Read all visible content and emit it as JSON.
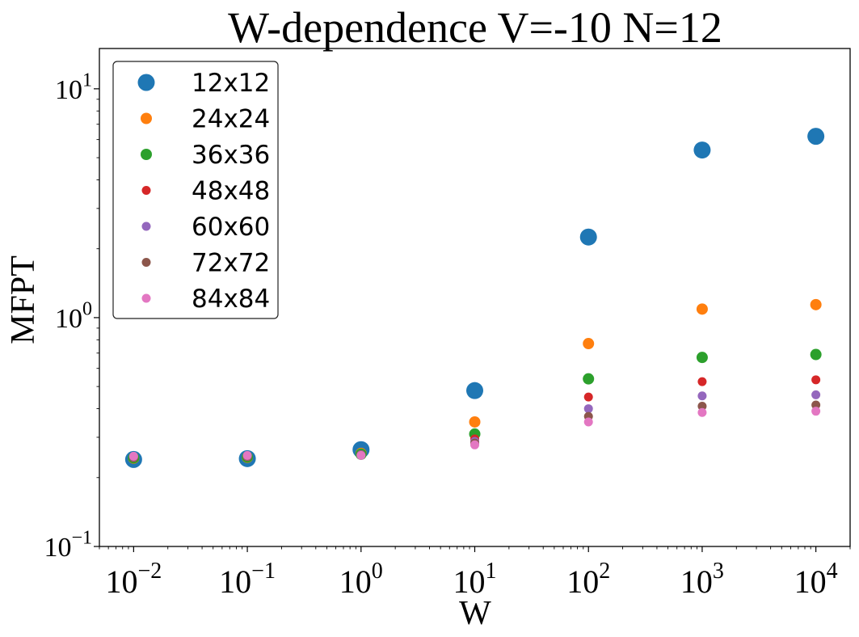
{
  "chart_data": {
    "type": "scatter",
    "title": "W-dependence V=-10 N=12",
    "xlabel": "W",
    "ylabel": "MFPT",
    "xscale": "log",
    "yscale": "log",
    "xlim": [
      0.005,
      20000
    ],
    "ylim": [
      0.1,
      15
    ],
    "x": [
      0.01,
      0.1,
      1,
      10,
      100,
      1000,
      10000
    ],
    "x_ticks": [
      {
        "value": 0.01,
        "base": "10",
        "exp": "−2"
      },
      {
        "value": 0.1,
        "base": "10",
        "exp": "−1"
      },
      {
        "value": 1,
        "base": "10",
        "exp": "0"
      },
      {
        "value": 10,
        "base": "10",
        "exp": "1"
      },
      {
        "value": 100,
        "base": "10",
        "exp": "2"
      },
      {
        "value": 1000,
        "base": "10",
        "exp": "3"
      },
      {
        "value": 10000,
        "base": "10",
        "exp": "4"
      }
    ],
    "y_ticks": [
      {
        "value": 0.1,
        "base": "10",
        "exp": "−1"
      },
      {
        "value": 1,
        "base": "10",
        "exp": "0"
      },
      {
        "value": 10,
        "base": "10",
        "exp": "1"
      }
    ],
    "grid": false,
    "legend": "upper-left",
    "series": [
      {
        "name": "12x12",
        "color": "#1f77b4",
        "size": "large",
        "values": [
          0.24,
          0.242,
          0.265,
          0.48,
          2.25,
          5.4,
          6.2
        ]
      },
      {
        "name": "24x24",
        "color": "#ff7f0e",
        "size": "medium",
        "values": [
          0.243,
          0.245,
          0.255,
          0.35,
          0.77,
          1.09,
          1.14
        ]
      },
      {
        "name": "36x36",
        "color": "#2ca02c",
        "size": "medium",
        "values": [
          0.244,
          0.246,
          0.253,
          0.31,
          0.54,
          0.67,
          0.69
        ]
      },
      {
        "name": "48x48",
        "color": "#d62728",
        "size": "small",
        "values": [
          0.245,
          0.247,
          0.252,
          0.295,
          0.45,
          0.525,
          0.535
        ]
      },
      {
        "name": "60x60",
        "color": "#9467bd",
        "size": "small",
        "values": [
          0.246,
          0.248,
          0.252,
          0.288,
          0.4,
          0.455,
          0.46
        ]
      },
      {
        "name": "72x72",
        "color": "#8c564b",
        "size": "small",
        "values": [
          0.247,
          0.249,
          0.251,
          0.283,
          0.37,
          0.41,
          0.415
        ]
      },
      {
        "name": "84x84",
        "color": "#e377c2",
        "size": "small",
        "values": [
          0.248,
          0.25,
          0.25,
          0.278,
          0.35,
          0.385,
          0.39
        ]
      }
    ]
  }
}
